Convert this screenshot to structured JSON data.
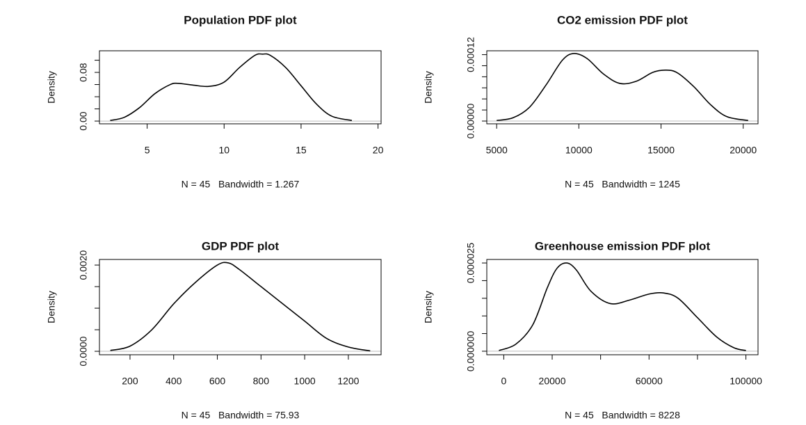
{
  "chart_data": [
    {
      "type": "line",
      "title": "Population PDF plot",
      "xlabel": "N = 45   Bandwidth = 1.267",
      "ylabel": "Density",
      "x": [
        2.6,
        3.5,
        4.5,
        5.5,
        6.5,
        7.0,
        8,
        9,
        10,
        11,
        12,
        12.5,
        13,
        14,
        15,
        16,
        17,
        18.3
      ],
      "series": [
        {
          "name": "Population",
          "color": "#000000",
          "values": [
            0.001,
            0.006,
            0.022,
            0.045,
            0.06,
            0.062,
            0.059,
            0.057,
            0.064,
            0.088,
            0.108,
            0.11,
            0.108,
            0.088,
            0.058,
            0.028,
            0.008,
            0.001
          ]
        }
      ],
      "xlim": [
        1.9,
        20.2
      ],
      "xticks": [
        5,
        10,
        15,
        20
      ],
      "ylim": [
        -0.0045,
        0.1155
      ],
      "yticks": [
        {
          "value": 0,
          "label": "0.00"
        },
        {
          "value": 0.02,
          "label": null
        },
        {
          "value": 0.04,
          "label": null
        },
        {
          "value": 0.06,
          "label": null
        },
        {
          "value": 0.08,
          "label": "0.08"
        },
        {
          "value": 0.1,
          "label": null
        }
      ]
    },
    {
      "type": "line",
      "title": "CO2 emission PDF plot",
      "xlabel": "N = 45   Bandwidth = 1245",
      "ylabel": "Density",
      "x": [
        5000,
        6000,
        7000,
        8000,
        9000,
        9700,
        10500,
        11500,
        12500,
        13500,
        14500,
        15300,
        16000,
        17000,
        18000,
        19000,
        20300
      ],
      "series": [
        {
          "name": "CO2 emission",
          "color": "#000000",
          "values": [
            1e-06,
            6e-06,
            2.5e-05,
            6.5e-05,
            0.00011,
            0.000122,
            0.000113,
            8.5e-05,
            6.8e-05,
            7.2e-05,
            8.8e-05,
            9.2e-05,
            8.7e-05,
            6.2e-05,
            3e-05,
            8e-06,
            1e-06
          ]
        }
      ],
      "xlim": [
        4400,
        20900
      ],
      "xticks": [
        5000,
        10000,
        15000,
        20000
      ],
      "ylim": [
        -5e-06,
        0.000127
      ],
      "yticks": [
        {
          "value": 0,
          "label": "0.00000"
        },
        {
          "value": 2e-05,
          "label": null
        },
        {
          "value": 4e-05,
          "label": null
        },
        {
          "value": 6e-05,
          "label": null
        },
        {
          "value": 8e-05,
          "label": null
        },
        {
          "value": 0.0001,
          "label": null
        },
        {
          "value": 0.00012,
          "label": "0.00012"
        }
      ]
    },
    {
      "type": "line",
      "title": "GDP PDF plot",
      "xlabel": "N = 45   Bandwidth = 75.93",
      "ylabel": "Density",
      "x": [
        110,
        200,
        300,
        400,
        500,
        600,
        650,
        700,
        800,
        900,
        1000,
        1100,
        1200,
        1300
      ],
      "series": [
        {
          "name": "GDP",
          "color": "#000000",
          "values": [
            2e-05,
            0.00012,
            0.0005,
            0.0011,
            0.0016,
            0.002,
            0.00205,
            0.0019,
            0.0015,
            0.0011,
            0.0007,
            0.0003,
            0.0001,
            1e-05
          ]
        }
      ],
      "xlim": [
        60,
        1350
      ],
      "xticks": [
        200,
        400,
        600,
        800,
        1000,
        1200
      ],
      "ylim": [
        -8e-05,
        0.00213
      ],
      "yticks": [
        {
          "value": 0,
          "label": "0.0000"
        },
        {
          "value": 0.0005,
          "label": null
        },
        {
          "value": 0.001,
          "label": null
        },
        {
          "value": 0.0015,
          "label": null
        },
        {
          "value": 0.002,
          "label": "0.0020"
        }
      ]
    },
    {
      "type": "line",
      "title": "Greenhouse emission PDF plot",
      "xlabel": "N = 45   Bandwidth = 8228",
      "ylabel": "Density",
      "x": [
        -2000,
        5000,
        12000,
        18000,
        22000,
        26000,
        30000,
        36000,
        44000,
        52000,
        60000,
        66000,
        72000,
        80000,
        88000,
        95000,
        100000
      ],
      "series": [
        {
          "name": "Greenhouse emission",
          "color": "#000000",
          "values": [
            2e-07,
            2e-06,
            7.5e-06,
            1.8e-05,
            2.35e-05,
            2.5e-05,
            2.3e-05,
            1.7e-05,
            1.35e-05,
            1.45e-05,
            1.62e-05,
            1.65e-05,
            1.5e-05,
            9.5e-06,
            4e-06,
            1e-06,
            2e-07
          ]
        }
      ],
      "xlim": [
        -7000,
        105000
      ],
      "xticks": [
        0,
        20000,
        {
          "value": 40000,
          "label": null
        },
        60000,
        {
          "value": 80000,
          "label": null
        },
        100000
      ],
      "ylim": [
        -1e-06,
        2.6e-05
      ],
      "yticks": [
        {
          "value": 0,
          "label": "0.000000"
        },
        {
          "value": 5e-06,
          "label": null
        },
        {
          "value": 1e-05,
          "label": null
        },
        {
          "value": 1.5e-05,
          "label": null
        },
        {
          "value": 2e-05,
          "label": null
        },
        {
          "value": 2.5e-05,
          "label": "0.000025"
        }
      ]
    }
  ]
}
